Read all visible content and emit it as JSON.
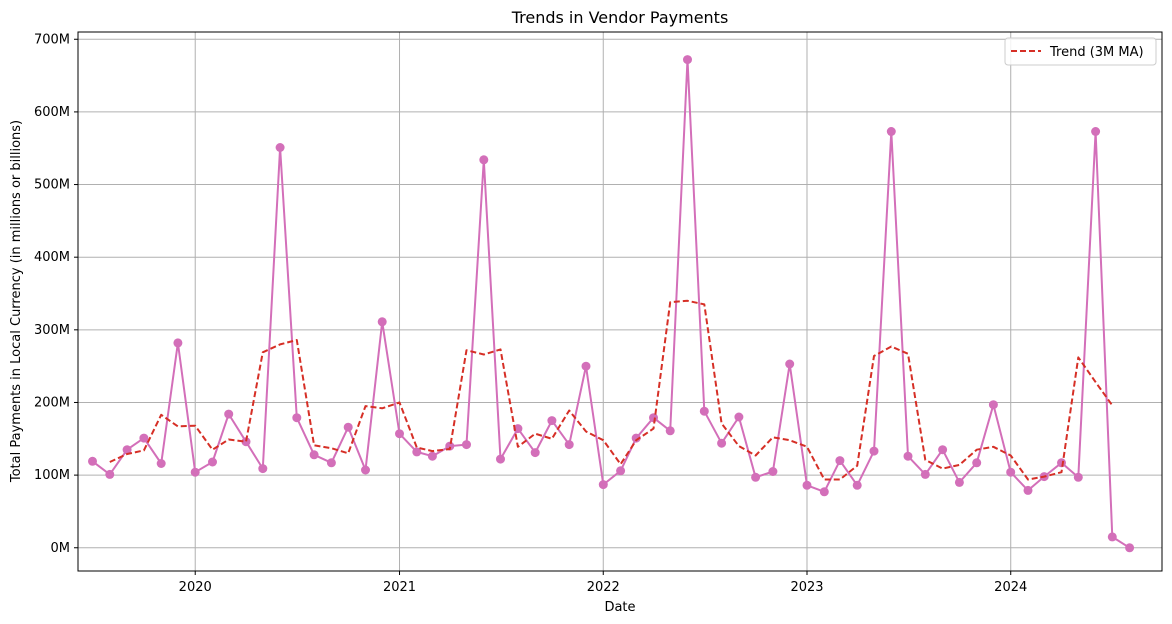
{
  "chart_data": {
    "type": "line",
    "title": "Trends in Vendor Payments",
    "xlabel": "Date",
    "ylabel": "Total Payments in Local Currency (in millions or billions)",
    "x_start": "2019-07",
    "xlim": [
      "2019-06-05",
      "2024-09-28"
    ],
    "ylim": [
      -32,
      710
    ],
    "x_ticks": [
      {
        "date": "2020-01-01",
        "label": "2020"
      },
      {
        "date": "2021-01-01",
        "label": "2021"
      },
      {
        "date": "2022-01-01",
        "label": "2022"
      },
      {
        "date": "2023-01-01",
        "label": "2023"
      },
      {
        "date": "2024-01-01",
        "label": "2024"
      }
    ],
    "y_ticks": [
      {
        "value": 0,
        "label": "0M"
      },
      {
        "value": 100,
        "label": "100M"
      },
      {
        "value": 200,
        "label": "200M"
      },
      {
        "value": 300,
        "label": "300M"
      },
      {
        "value": 400,
        "label": "400M"
      },
      {
        "value": 500,
        "label": "500M"
      },
      {
        "value": 600,
        "label": "600M"
      },
      {
        "value": 700,
        "label": "700M"
      }
    ],
    "grid": true,
    "legend_position": "top-right",
    "series": [
      {
        "name": "",
        "style": "solid-markers",
        "color": "#d36fb9",
        "dates": [
          "2019-07",
          "2019-08",
          "2019-09",
          "2019-10",
          "2019-11",
          "2019-12",
          "2020-01",
          "2020-02",
          "2020-03",
          "2020-04",
          "2020-05",
          "2020-06",
          "2020-07",
          "2020-08",
          "2020-09",
          "2020-10",
          "2020-11",
          "2020-12",
          "2021-01",
          "2021-02",
          "2021-03",
          "2021-04",
          "2021-05",
          "2021-06",
          "2021-07",
          "2021-08",
          "2021-09",
          "2021-10",
          "2021-11",
          "2021-12",
          "2022-01",
          "2022-02",
          "2022-03",
          "2022-04",
          "2022-05",
          "2022-06",
          "2022-07",
          "2022-08",
          "2022-09",
          "2022-10",
          "2022-11",
          "2022-12",
          "2023-01",
          "2023-02",
          "2023-03",
          "2023-04",
          "2023-05",
          "2023-06",
          "2023-07",
          "2023-08",
          "2023-09",
          "2023-10",
          "2023-11",
          "2023-12",
          "2024-01",
          "2024-02",
          "2024-03",
          "2024-04",
          "2024-05",
          "2024-06",
          "2024-07",
          "2024-08"
        ],
        "values": [
          119,
          101,
          135,
          151,
          116,
          282,
          104,
          118,
          184,
          146,
          109,
          551,
          179,
          128,
          117,
          166,
          107,
          311,
          157,
          132,
          126,
          140,
          142,
          534,
          122,
          164,
          131,
          175,
          142,
          250,
          87,
          106,
          151,
          179,
          161,
          672,
          188,
          144,
          180,
          97,
          105,
          253,
          86,
          77,
          120,
          86,
          133,
          573,
          126,
          101,
          135,
          90,
          117,
          197,
          104,
          79,
          98,
          117,
          97,
          573,
          15,
          0
        ]
      },
      {
        "name": "Trend (3M MA)",
        "style": "dashed",
        "color": "#d62f26",
        "dates": [
          "2019-08",
          "2019-09",
          "2019-10",
          "2019-11",
          "2019-12",
          "2020-01",
          "2020-02",
          "2020-03",
          "2020-04",
          "2020-05",
          "2020-06",
          "2020-07",
          "2020-08",
          "2020-09",
          "2020-10",
          "2020-11",
          "2020-12",
          "2021-01",
          "2021-02",
          "2021-03",
          "2021-04",
          "2021-05",
          "2021-06",
          "2021-07",
          "2021-08",
          "2021-09",
          "2021-10",
          "2021-11",
          "2021-12",
          "2022-01",
          "2022-02",
          "2022-03",
          "2022-04",
          "2022-05",
          "2022-06",
          "2022-07",
          "2022-08",
          "2022-09",
          "2022-10",
          "2022-11",
          "2022-12",
          "2023-01",
          "2023-02",
          "2023-03",
          "2023-04",
          "2023-05",
          "2023-06",
          "2023-07",
          "2023-08",
          "2023-09",
          "2023-10",
          "2023-11",
          "2023-12",
          "2024-01",
          "2024-02",
          "2024-03",
          "2024-04",
          "2024-05",
          "2024-06",
          "2024-07"
        ],
        "values": [
          118,
          129,
          134,
          183,
          167,
          168,
          135,
          149,
          146,
          269,
          280,
          286,
          141,
          137,
          130,
          195,
          192,
          200,
          138,
          133,
          136,
          272,
          266,
          273,
          139,
          157,
          150,
          189,
          160,
          148,
          115,
          148,
          164,
          338,
          340,
          335,
          171,
          140,
          127,
          152,
          148,
          139,
          94,
          94,
          113,
          264,
          277,
          267,
          121,
          109,
          114,
          135,
          139,
          127,
          94,
          98,
          104,
          262,
          228,
          196
        ]
      }
    ]
  }
}
